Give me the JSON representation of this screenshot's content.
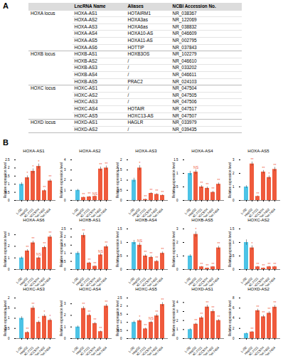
{
  "panel_labels": [
    "A",
    "B"
  ],
  "table": {
    "header": [
      "",
      "LncRNA Name",
      "Aliases",
      "NCBI Accession No."
    ],
    "groups": [
      {
        "locus": "HOXA locus",
        "rows": [
          [
            "HOXA-AS1",
            "HOTAIRM1",
            "NR_038367"
          ],
          [
            "HOXA-AS2",
            "HOXA3as",
            "NR_122069"
          ],
          [
            "HOXA-AS3",
            "HOXA6as",
            "NR_038832"
          ],
          [
            "HOXA-AS4",
            "HOXA10-AS",
            "NR_046609"
          ],
          [
            "HOXA-AS5",
            "HOXA11-AS",
            "NR_002795"
          ],
          [
            "HOXA-AS6",
            "HOTTIP",
            "NR_037843"
          ]
        ]
      },
      {
        "locus": "HOXB locus",
        "rows": [
          [
            "HOXB-AS1",
            "HOXB3OS",
            "NR_102279"
          ],
          [
            "HOXB-AS2",
            "/",
            "NR_046610"
          ],
          [
            "HOXB-AS3",
            "/",
            "NR_033202"
          ],
          [
            "HOXB-AS4",
            "/",
            "NR_046611"
          ],
          [
            "HOXB-AS5",
            "PRAC2",
            "NR_024103"
          ]
        ]
      },
      {
        "locus": "HOXC locus",
        "rows": [
          [
            "HOXC-AS1",
            "/",
            "NR_047504"
          ],
          [
            "HOXC-AS2",
            "/",
            "NR_047505"
          ],
          [
            "HOXC-AS3",
            "/",
            "NR_047506"
          ],
          [
            "HOXC-AS4",
            "HOTAIR",
            "NR_047517"
          ],
          [
            "HOXC-AS5",
            "HOXC13-AS",
            "NR_047507"
          ]
        ]
      },
      {
        "locus": "HOXD locus",
        "rows": [
          [
            "HOXD-AS1",
            "HAGLR",
            "NR_033979"
          ],
          [
            "HOXD-AS2",
            "/",
            "NR_039435"
          ]
        ]
      }
    ]
  },
  "chart_data": [
    {
      "type": "bar",
      "title": "HOXA-AS1",
      "y_label": "Relative expression level",
      "categories": [
        "L-O2",
        "HepG2",
        "SMMC-7721",
        "MHCC97H",
        "Bel-7402",
        "Bel-7404"
      ],
      "values": [
        1,
        1.4,
        1.8,
        2.1,
        0.6,
        1.2
      ],
      "errors": [
        0.1,
        0.12,
        0.15,
        0.15,
        0.06,
        0.1
      ],
      "significance": [
        null,
        "*",
        "*",
        "*",
        "**",
        "**"
      ],
      "colors": [
        "#4cc3e6",
        "#ef5a3c",
        "#ef5a3c",
        "#ef5a3c",
        "#ef5a3c",
        "#ef5a3c"
      ],
      "ylim": [
        0,
        2.5
      ],
      "yticks": [
        0,
        0.5,
        1,
        1.5,
        2,
        2.5
      ]
    },
    {
      "type": "bar",
      "title": "HOXA-AS2",
      "y_label": "Relative expression level",
      "categories": [
        "L-O2",
        "HepG2",
        "SMMC-7721",
        "MHCC97H",
        "Bel-7402",
        "Bel-7404"
      ],
      "values": [
        1,
        0.3,
        0.35,
        0.4,
        3.1,
        3.2
      ],
      "errors": [
        0.1,
        0.04,
        0.05,
        0.05,
        0.2,
        0.2
      ],
      "significance": [
        null,
        "**",
        "**",
        "NS",
        "**",
        "**"
      ],
      "colors": [
        "#4cc3e6",
        "#ef5a3c",
        "#ef5a3c",
        "#ef5a3c",
        "#ef5a3c",
        "#ef5a3c"
      ],
      "ylim": [
        0,
        4
      ],
      "yticks": [
        0,
        1,
        2,
        3,
        4
      ]
    },
    {
      "type": "bar",
      "title": "HOXA-AS3",
      "y_label": "Relative expression level",
      "categories": [
        "L-O2",
        "HepG2",
        "SMMC-7721",
        "MHCC97H",
        "Bel-7402",
        "Bel-7404"
      ],
      "values": [
        1,
        1.6,
        0.05,
        0.35,
        0.3,
        0.25
      ],
      "errors": [
        0.1,
        0.12,
        0.02,
        0.04,
        0.04,
        0.03
      ],
      "significance": [
        null,
        "*",
        "**",
        "**",
        "**",
        "**"
      ],
      "colors": [
        "#4cc3e6",
        "#ef5a3c",
        "#ef5a3c",
        "#ef5a3c",
        "#ef5a3c",
        "#ef5a3c"
      ],
      "ylim": [
        0,
        2
      ],
      "yticks": [
        0,
        0.5,
        1,
        1.5,
        2
      ]
    },
    {
      "type": "bar",
      "title": "HOXA-AS4",
      "y_label": "Relative expression level",
      "categories": [
        "L-O2",
        "HepG2",
        "SMMC-7721",
        "MHCC97H",
        "Bel-7402",
        "Bel-7404"
      ],
      "values": [
        1,
        1.05,
        0.5,
        0.45,
        0.3,
        0.6
      ],
      "errors": [
        0.08,
        0.08,
        0.05,
        0.05,
        0.04,
        0.05
      ],
      "significance": [
        null,
        "NS",
        "**",
        "**",
        "**",
        "**"
      ],
      "colors": [
        "#4cc3e6",
        "#ef5a3c",
        "#ef5a3c",
        "#ef5a3c",
        "#ef5a3c",
        "#ef5a3c"
      ],
      "ylim": [
        0,
        1.5
      ],
      "yticks": [
        0,
        0.5,
        1,
        1.5
      ]
    },
    {
      "type": "bar",
      "title": "HOXA-AS5",
      "y_label": "Relative expression level",
      "categories": [
        "L-O2",
        "HepG2",
        "SMMC-7721",
        "MHCC97H",
        "Bel-7402",
        "Bel-7404"
      ],
      "values": [
        1,
        2.7,
        0.3,
        2.1,
        1.7,
        2.3
      ],
      "errors": [
        0.1,
        0.15,
        0.04,
        0.12,
        0.12,
        0.15
      ],
      "significance": [
        null,
        "**",
        "**",
        "**",
        "*",
        "**"
      ],
      "colors": [
        "#4cc3e6",
        "#ef5a3c",
        "#ef5a3c",
        "#ef5a3c",
        "#ef5a3c",
        "#ef5a3c"
      ],
      "ylim": [
        0,
        3
      ],
      "yticks": [
        0,
        1,
        2,
        3
      ]
    },
    {
      "type": "bar",
      "title": "HOXA-AS6",
      "y_label": "Relative expression level",
      "categories": [
        "L-O2",
        "HepG2",
        "SMMC-7721",
        "MHCC97H",
        "Bel-7402",
        "Bel-7404"
      ],
      "values": [
        1,
        1.6,
        2.3,
        1.0,
        1.9,
        2.8
      ],
      "errors": [
        0.1,
        0.12,
        0.15,
        0.1,
        0.12,
        0.15
      ],
      "significance": [
        null,
        "**",
        "**",
        "NS",
        "**",
        "**"
      ],
      "colors": [
        "#4cc3e6",
        "#ef5a3c",
        "#ef5a3c",
        "#ef5a3c",
        "#ef5a3c",
        "#ef5a3c"
      ],
      "ylim": [
        0,
        3.5
      ],
      "yticks": [
        0,
        1,
        2,
        3
      ]
    },
    {
      "type": "bar",
      "title": "HOXB-AS1",
      "y_label": "Relative expression level",
      "categories": [
        "L-O2",
        "HepG2",
        "SMMC-7721",
        "MHCC97H",
        "Bel-7402",
        "Bel-7404"
      ],
      "values": [
        1,
        2.1,
        0.4,
        0.2,
        0.9,
        1.4
      ],
      "errors": [
        0.1,
        0.15,
        0.05,
        0.03,
        0.08,
        0.1
      ],
      "significance": [
        null,
        "**",
        "**",
        "**",
        "NS",
        "**"
      ],
      "colors": [
        "#4cc3e6",
        "#ef5a3c",
        "#ef5a3c",
        "#ef5a3c",
        "#ef5a3c",
        "#ef5a3c"
      ],
      "ylim": [
        0,
        2.5
      ],
      "yticks": [
        0,
        0.5,
        1,
        1.5,
        2,
        2.5
      ]
    },
    {
      "type": "bar",
      "title": "HOXB-AS4",
      "y_label": "Relative expression level",
      "categories": [
        "L-O2",
        "HepG2",
        "SMMC-7721",
        "MHCC97H",
        "Bel-7402",
        "Bel-7404"
      ],
      "values": [
        1,
        0.9,
        0.5,
        0.45,
        0.3,
        0.6
      ],
      "errors": [
        0.08,
        0.08,
        0.05,
        0.05,
        0.04,
        0.05
      ],
      "significance": [
        null,
        "NS",
        "**",
        "**",
        "**",
        "**"
      ],
      "colors": [
        "#4cc3e6",
        "#ef5a3c",
        "#ef5a3c",
        "#ef5a3c",
        "#ef5a3c",
        "#ef5a3c"
      ],
      "ylim": [
        0,
        1.5
      ],
      "yticks": [
        0,
        0.5,
        1,
        1.5
      ]
    },
    {
      "type": "bar",
      "title": "HOXB-AS5",
      "y_label": "Relative expression level",
      "categories": [
        "L-O2",
        "HepG2",
        "SMMC-7721",
        "MHCC97H",
        "Bel-7402",
        "Bel-7404"
      ],
      "values": [
        1,
        2.6,
        0.2,
        0.1,
        0.2,
        1.6
      ],
      "errors": [
        0.1,
        0.2,
        0.03,
        0.02,
        0.03,
        0.12
      ],
      "significance": [
        null,
        "*",
        "**",
        "**",
        "**",
        "**"
      ],
      "colors": [
        "#4cc3e6",
        "#ef5a3c",
        "#ef5a3c",
        "#ef5a3c",
        "#ef5a3c",
        "#ef5a3c"
      ],
      "ylim": [
        0,
        3
      ],
      "yticks": [
        0,
        1,
        2,
        3
      ]
    },
    {
      "type": "bar",
      "title": "HOXC-AS2",
      "y_label": "Relative expression level",
      "categories": [
        "L-O2",
        "HepG2",
        "SMMC-7721",
        "MHCC97H",
        "Bel-7402",
        "Bel-7404"
      ],
      "values": [
        1,
        0.8,
        0.1,
        0.05,
        0.1,
        0.1
      ],
      "errors": [
        0.1,
        0.08,
        0.02,
        0.01,
        0.02,
        0.02
      ],
      "significance": [
        null,
        "*",
        "**",
        "**",
        "**",
        "**"
      ],
      "colors": [
        "#4cc3e6",
        "#ef5a3c",
        "#ef5a3c",
        "#ef5a3c",
        "#ef5a3c",
        "#ef5a3c"
      ],
      "ylim": [
        0,
        1.5
      ],
      "yticks": [
        0,
        0.5,
        1,
        1.5
      ]
    },
    {
      "type": "bar",
      "title": "HOXC-AS3",
      "y_label": "Relative expression level",
      "categories": [
        "L-O2",
        "HepG2",
        "SMMC-7721",
        "MHCC97H",
        "Bel-7402",
        "Bel-7404"
      ],
      "values": [
        1,
        0.3,
        1.5,
        0.8,
        1.1,
        0.9
      ],
      "errors": [
        0.08,
        0.04,
        0.1,
        0.07,
        0.08,
        0.07
      ],
      "significance": [
        null,
        "**",
        "**",
        "*",
        "*",
        "*"
      ],
      "colors": [
        "#4cc3e6",
        "#ef5a3c",
        "#ef5a3c",
        "#ef5a3c",
        "#ef5a3c",
        "#ef5a3c"
      ],
      "ylim": [
        0,
        2
      ],
      "yticks": [
        0,
        0.5,
        1,
        1.5,
        2
      ]
    },
    {
      "type": "bar",
      "title": "HOXC-AS4",
      "y_label": "Relative expression level",
      "categories": [
        "L-O2",
        "HepG2",
        "SMMC-7721",
        "MHCC97H",
        "Bel-7402",
        "Bel-7404"
      ],
      "values": [
        1,
        2.6,
        2.0,
        1.3,
        0.6,
        2.8
      ],
      "errors": [
        0.1,
        0.15,
        0.12,
        0.1,
        0.06,
        0.15
      ],
      "significance": [
        null,
        "**",
        "**",
        "**",
        "**",
        "**"
      ],
      "colors": [
        "#4cc3e6",
        "#ef5a3c",
        "#ef5a3c",
        "#ef5a3c",
        "#ef5a3c",
        "#ef5a3c"
      ],
      "ylim": [
        0,
        3.5
      ],
      "yticks": [
        0,
        1,
        2,
        3
      ]
    },
    {
      "type": "bar",
      "title": "HOXC-AS5",
      "y_label": "Relative expression level",
      "categories": [
        "L-O2",
        "HepG2",
        "SMMC-7721",
        "MHCC97H",
        "Bel-7402",
        "Bel-7404"
      ],
      "values": [
        1,
        1.1,
        0.6,
        1.0,
        1.4,
        2.1
      ],
      "errors": [
        0.08,
        0.08,
        0.05,
        0.08,
        0.1,
        0.12
      ],
      "significance": [
        null,
        "*",
        "**",
        "NS",
        "**",
        "**"
      ],
      "colors": [
        "#4cc3e6",
        "#ef5a3c",
        "#ef5a3c",
        "#ef5a3c",
        "#ef5a3c",
        "#ef5a3c"
      ],
      "ylim": [
        0,
        2.5
      ],
      "yticks": [
        0,
        0.5,
        1,
        1.5,
        2,
        2.5
      ]
    },
    {
      "type": "bar",
      "title": "HOXD-AS1",
      "y_label": "Relative expression level",
      "categories": [
        "L-O2",
        "HepG2",
        "SMMC-7721",
        "MHCC97H",
        "Bel-7402",
        "Bel-7404"
      ],
      "values": [
        1,
        1.6,
        2.3,
        3.5,
        3.0,
        2.0
      ],
      "errors": [
        0.1,
        0.12,
        0.15,
        0.2,
        0.2,
        0.12
      ],
      "significance": [
        null,
        "**",
        "**",
        "**",
        "**",
        "**"
      ],
      "colors": [
        "#4cc3e6",
        "#ef5a3c",
        "#ef5a3c",
        "#ef5a3c",
        "#ef5a3c",
        "#ef5a3c"
      ],
      "ylim": [
        0,
        4.5
      ],
      "yticks": [
        0,
        1,
        2,
        3,
        4
      ]
    },
    {
      "type": "bar",
      "title": "HOXD-AS2",
      "y_label": "Relative expression level",
      "categories": [
        "L-O2",
        "HepG2",
        "SMMC-7721",
        "MHCC97H",
        "Bel-7402",
        "Bel-7404"
      ],
      "values": [
        1,
        1.3,
        5.5,
        4.3,
        5.0,
        6.2
      ],
      "errors": [
        0.1,
        0.12,
        0.3,
        0.3,
        0.3,
        0.35
      ],
      "significance": [
        null,
        "**",
        "**",
        "**",
        "**",
        "**"
      ],
      "colors": [
        "#4cc3e6",
        "#ef5a3c",
        "#ef5a3c",
        "#ef5a3c",
        "#ef5a3c",
        "#ef5a3c"
      ],
      "ylim": [
        0,
        8
      ],
      "yticks": [
        0,
        2,
        4,
        6,
        8
      ]
    }
  ]
}
